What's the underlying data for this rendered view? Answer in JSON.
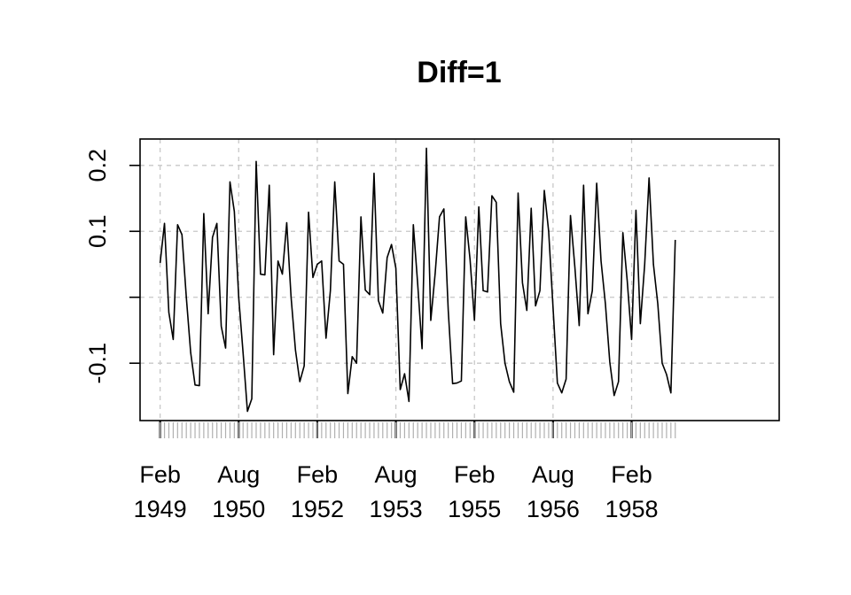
{
  "chart_data": {
    "type": "line",
    "title": "Diff=1",
    "xlabel": "",
    "ylabel": "",
    "ylim": [
      -0.187,
      0.24
    ],
    "y_ticks": [
      {
        "value": 0.2,
        "label": "0.2"
      },
      {
        "value": 0.1,
        "label": "0.1"
      },
      {
        "value": 0.0,
        "label": ""
      },
      {
        "value": -0.1,
        "label": "-0.1"
      }
    ],
    "x_ticks": [
      {
        "value": 1949.083,
        "month": "Feb",
        "year": "1949"
      },
      {
        "value": 1950.583,
        "month": "Aug",
        "year": "1950"
      },
      {
        "value": 1952.083,
        "month": "Feb",
        "year": "1952"
      },
      {
        "value": 1953.583,
        "month": "Aug",
        "year": "1953"
      },
      {
        "value": 1955.083,
        "month": "Feb",
        "year": "1955"
      },
      {
        "value": 1956.583,
        "month": "Aug",
        "year": "1956"
      },
      {
        "value": 1958.083,
        "month": "Feb",
        "year": "1958"
      }
    ],
    "xlim": [
      1948.7,
      1960.9
    ],
    "x_start": 1949.083,
    "x_step": 0.08333,
    "grid": true,
    "series": [
      {
        "values": [
          0.052,
          0.112,
          -0.023,
          -0.064,
          0.11,
          0.095,
          0.0,
          -0.084,
          -0.133,
          -0.134,
          0.127,
          -0.025,
          0.091,
          0.112,
          -0.044,
          -0.077,
          0.175,
          0.13,
          0.0,
          -0.084,
          -0.173,
          -0.154,
          0.206,
          0.035,
          0.034,
          0.17,
          -0.087,
          0.055,
          0.035,
          0.113,
          0.0,
          -0.08,
          -0.128,
          -0.104,
          0.129,
          0.03,
          0.05,
          0.055,
          -0.062,
          0.01,
          0.175,
          0.055,
          0.05,
          -0.146,
          -0.09,
          -0.1,
          0.122,
          0.011,
          0.004,
          0.188,
          -0.005,
          -0.024,
          0.06,
          0.08,
          0.044,
          -0.14,
          -0.116,
          -0.158,
          0.11,
          0.02,
          -0.078,
          0.226,
          -0.035,
          0.036,
          0.122,
          0.134,
          -0.02,
          -0.131,
          -0.13,
          -0.127,
          0.122,
          0.057,
          -0.035,
          0.137,
          0.01,
          0.008,
          0.154,
          0.144,
          -0.04,
          -0.1,
          -0.128,
          -0.144,
          0.158,
          0.022,
          -0.02,
          0.135,
          -0.013,
          0.01,
          0.162,
          0.1,
          -0.015,
          -0.13,
          -0.145,
          -0.124,
          0.124,
          0.046,
          -0.043,
          0.17,
          -0.025,
          0.01,
          0.173,
          0.055,
          -0.01,
          -0.098,
          -0.149,
          -0.128,
          0.098,
          0.025,
          -0.064,
          0.132,
          -0.04,
          0.05,
          0.181,
          0.05,
          -0.01,
          -0.1,
          -0.117,
          -0.145,
          0.087
        ]
      }
    ]
  }
}
